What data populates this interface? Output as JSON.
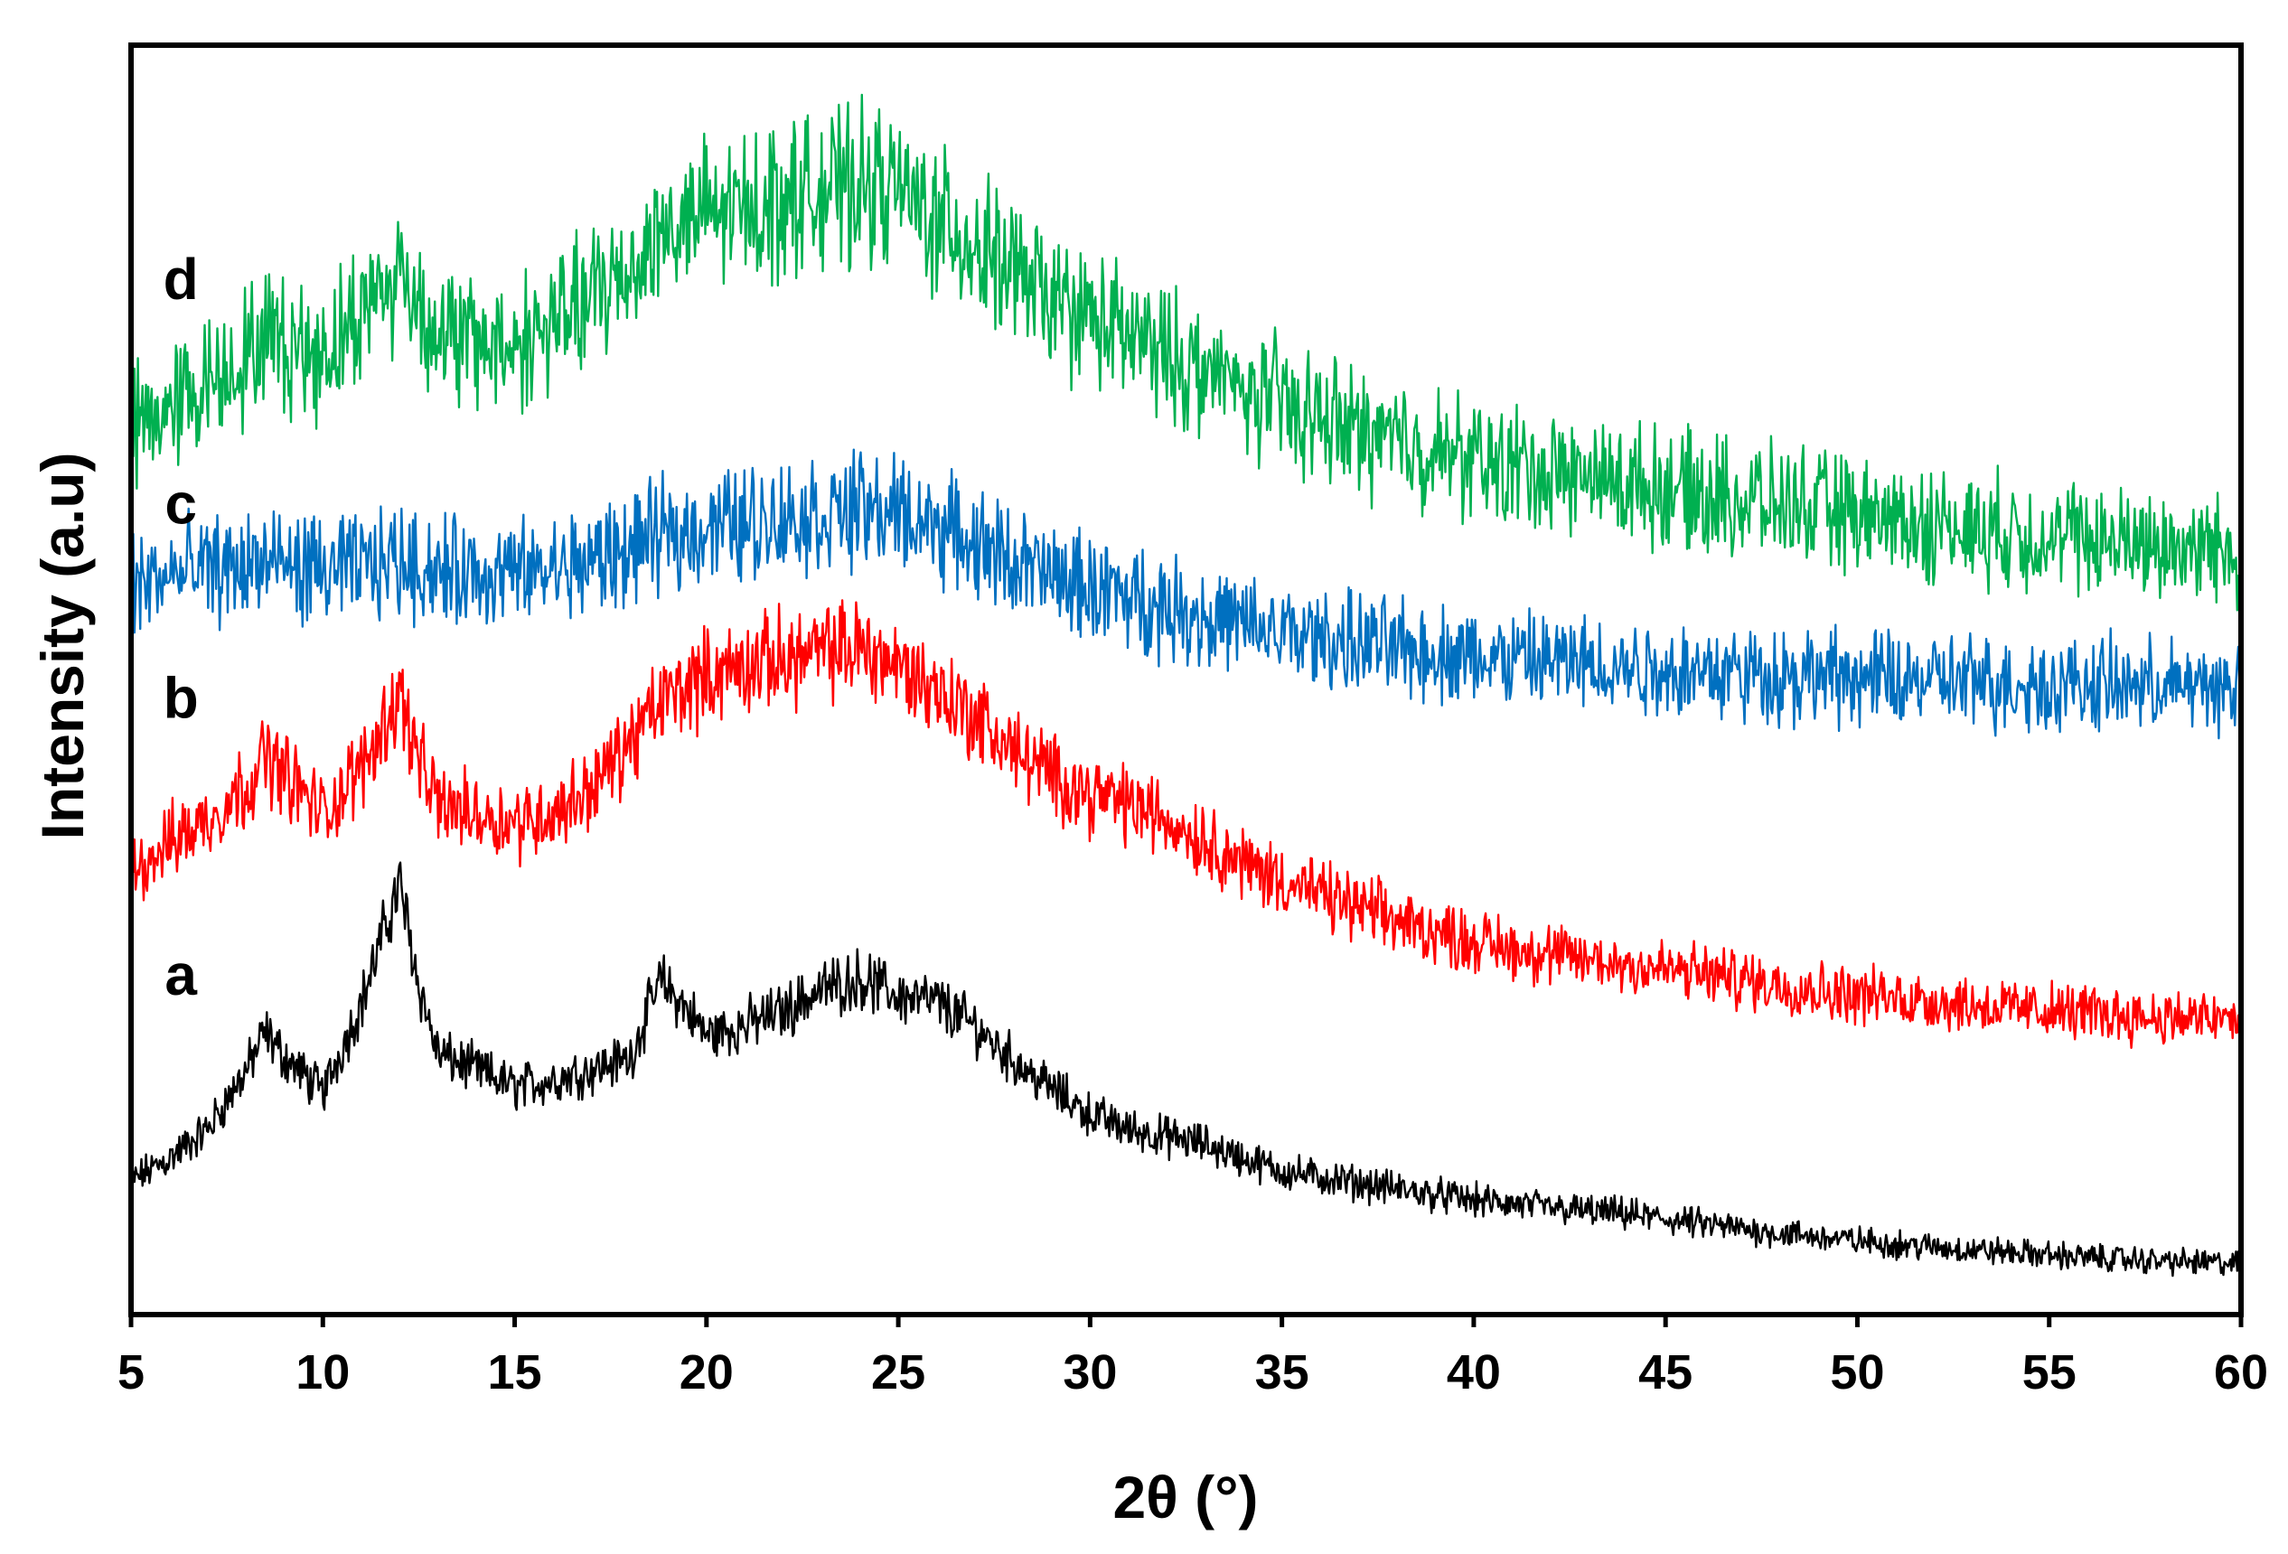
{
  "chart_data": {
    "type": "line",
    "title": "",
    "xlabel": "2θ (°)",
    "ylabel": "Intensity (a.u)",
    "xlim": [
      5,
      60
    ],
    "ylim": [
      0,
      100
    ],
    "x_ticks": [
      5,
      10,
      15,
      20,
      25,
      30,
      35,
      40,
      45,
      50,
      55,
      60
    ],
    "x_tick_labels": [
      "5",
      "10",
      "15",
      "20",
      "25",
      "30",
      "35",
      "40",
      "45",
      "50",
      "55",
      "60"
    ],
    "y_ticks_shown": false,
    "grid": false,
    "legend": "none",
    "x": [
      5,
      6,
      7,
      8,
      8.5,
      9,
      10,
      11,
      12,
      12.5,
      13,
      14,
      15,
      16,
      17,
      18,
      18.8,
      19.5,
      20,
      21,
      22,
      23,
      24,
      25,
      26,
      27,
      28,
      29,
      30,
      31,
      32,
      33,
      34,
      35,
      36,
      38,
      40,
      42,
      44,
      46,
      48,
      50,
      52,
      54,
      56,
      58,
      60
    ],
    "series": [
      {
        "name": "a",
        "color": "#000000",
        "values": [
          10.5,
          12.3,
          14.6,
          19.2,
          22.2,
          20.3,
          17.5,
          24.5,
          34.0,
          26.0,
          20.5,
          19.3,
          17.9,
          18.5,
          19.3,
          20.2,
          26.3,
          24.0,
          22.0,
          22.8,
          23.9,
          25.6,
          26.5,
          25.1,
          24.6,
          22.7,
          20.0,
          17.8,
          15.8,
          14.6,
          14.0,
          13.4,
          12.3,
          11.3,
          10.8,
          9.9,
          9.0,
          8.4,
          7.9,
          7.1,
          6.4,
          5.8,
          5.3,
          4.9,
          4.5,
          4.2,
          4.0
        ]
      },
      {
        "name": "b",
        "color": "#ff0000",
        "values": [
          35.0,
          37.2,
          39.0,
          41.7,
          44.0,
          42.6,
          39.4,
          43.0,
          49.0,
          43.5,
          40.2,
          39.5,
          38.8,
          39.5,
          41.5,
          45.0,
          48.2,
          49.6,
          50.3,
          51.1,
          51.7,
          52.1,
          52.6,
          51.1,
          49.2,
          47.1,
          44.4,
          42.5,
          41.0,
          40.2,
          39.0,
          37.4,
          35.5,
          34.3,
          33.0,
          31.0,
          29.4,
          28.3,
          27.6,
          26.8,
          26.0,
          25.2,
          24.7,
          24.1,
          23.8,
          23.4,
          23.2
        ]
      },
      {
        "name": "c",
        "color": "#0070c0",
        "values": [
          57.5,
          58.2,
          58.6,
          59.0,
          59.3,
          59.0,
          58.5,
          58.8,
          59.5,
          59.0,
          58.6,
          58.4,
          58.3,
          58.6,
          59.3,
          60.3,
          61.2,
          61.7,
          62.1,
          62.4,
          62.8,
          63.0,
          63.4,
          63.1,
          62.1,
          60.8,
          59.3,
          58.0,
          57.3,
          56.5,
          55.8,
          55.0,
          54.2,
          53.6,
          53.2,
          52.5,
          51.8,
          51.4,
          51.1,
          50.7,
          50.4,
          50.1,
          49.9,
          49.7,
          49.6,
          49.5,
          49.5
        ]
      },
      {
        "name": "d",
        "color": "#00b050",
        "values": [
          69.5,
          71.5,
          73.5,
          75.5,
          77.0,
          76.5,
          75.6,
          79.0,
          82.2,
          79.5,
          77.3,
          76.5,
          76.4,
          78.0,
          80.0,
          82.5,
          85.2,
          86.0,
          86.5,
          87.2,
          88.0,
          88.5,
          89.0,
          88.6,
          86.2,
          84.2,
          82.0,
          79.8,
          78.5,
          77.0,
          75.6,
          74.2,
          72.8,
          71.8,
          70.5,
          68.8,
          67.3,
          66.3,
          65.5,
          64.6,
          63.8,
          62.9,
          62.2,
          61.6,
          61.0,
          60.6,
          60.2
        ]
      }
    ]
  }
}
